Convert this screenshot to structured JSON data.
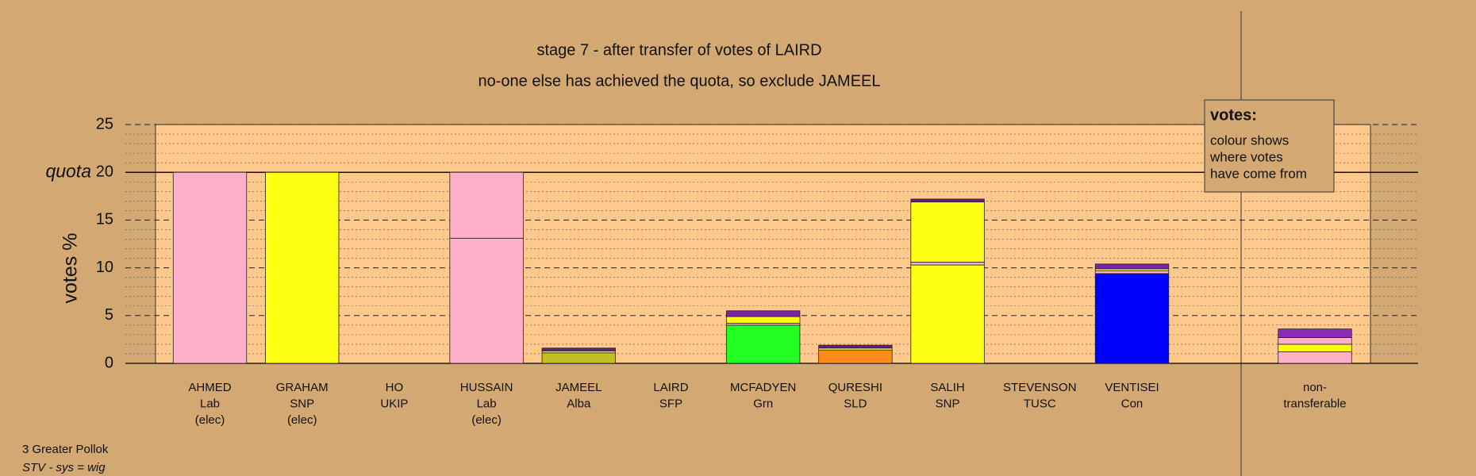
{
  "chart_data": {
    "type": "stacked-bar",
    "title": "stage 7 - after transfer of votes of LAIRD",
    "subtitle": "no-one else has achieved the quota, so exclude JAMEEL",
    "y_label": "votes %",
    "quota": 20,
    "quota_label": "quota",
    "categories": [
      [
        "AHMED",
        "Lab",
        "(elec)"
      ],
      [
        "GRAHAM",
        "SNP",
        "(elec)"
      ],
      [
        "HO",
        "UKIP"
      ],
      [
        "HUSSAIN",
        "Lab",
        "(elec)"
      ],
      [
        "JAMEEL",
        "Alba"
      ],
      [
        "LAIRD",
        "SFP"
      ],
      [
        "MCFADYEN",
        "Grn"
      ],
      [
        "QURESHI",
        "SLD"
      ],
      [
        "SALIH",
        "SNP"
      ],
      [
        "STEVENSON",
        "TUSC"
      ],
      [
        "VENTISEI",
        "Con"
      ],
      [
        "non-",
        "transferable"
      ]
    ],
    "layers": [
      {
        "values": [
          20,
          20,
          null,
          13.1,
          1.1,
          null,
          4.0,
          1.4,
          10.3,
          null,
          9.4,
          1.2
        ],
        "colors": [
          "#ffb0c8",
          "#ffff14",
          null,
          "#ffb0c8",
          "#c0c020",
          null,
          "#22ff22",
          "#ff8c1a",
          "#ffff14",
          null,
          "#0000ff",
          "#ffb0c8"
        ]
      },
      {
        "values": [
          null,
          null,
          null,
          6.9,
          0.2,
          null,
          0.2,
          0.2,
          0.3,
          null,
          0.3,
          0.8
        ],
        "colors": [
          null,
          null,
          null,
          "#ffb0c8",
          "#ffff14",
          null,
          "#ffb0c8",
          "#ffff14",
          "#ffb0c8",
          null,
          "#ffb0c8",
          "#ffff14"
        ]
      },
      {
        "values": [
          null,
          null,
          null,
          null,
          0.3,
          null,
          0.7,
          0.3,
          6.3,
          null,
          0.2,
          0.7
        ],
        "colors": [
          null,
          null,
          null,
          null,
          "#6a1a8a",
          null,
          "#ffff14",
          "#6a1a8a",
          "#ffff14",
          null,
          "#ffff14",
          "#ffb0c8"
        ]
      },
      {
        "values": [
          null,
          null,
          null,
          null,
          null,
          null,
          0.6,
          null,
          0.3,
          null,
          0.5,
          0.9
        ],
        "colors": [
          null,
          null,
          null,
          null,
          null,
          null,
          "#7a22a8",
          null,
          "#6a1a8a",
          null,
          "#7a22a8",
          "#8a2ab8"
        ]
      }
    ],
    "ylim": [
      0,
      25
    ],
    "yticks": [
      0,
      5,
      10,
      15,
      20,
      25
    ],
    "minor_yticks": [
      1,
      2,
      3,
      4,
      6,
      7,
      8,
      9,
      11,
      12,
      13,
      14,
      16,
      17,
      18,
      19,
      21,
      22,
      23,
      24
    ],
    "legend_title": "votes:",
    "legend_lines": [
      "colour shows",
      "where votes",
      "have come from"
    ],
    "footer": [
      "3 Greater Pollok",
      "STV - sys = wig"
    ]
  }
}
